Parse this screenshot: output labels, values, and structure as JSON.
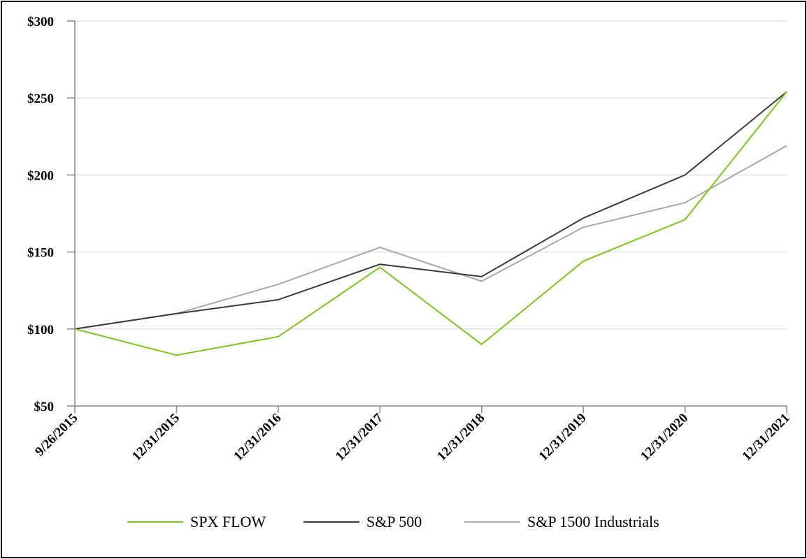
{
  "chart_data": {
    "type": "line",
    "title": "",
    "xlabel": "",
    "ylabel": "",
    "categories": [
      "9/26/2015",
      "12/31/2015",
      "12/31/2016",
      "12/31/2017",
      "12/31/2018",
      "12/31/2019",
      "12/31/2020",
      "12/31/2021"
    ],
    "ylim": [
      50,
      300
    ],
    "yticks": [
      50,
      100,
      150,
      200,
      250,
      300
    ],
    "ytick_labels": [
      "$50",
      "$100",
      "$150",
      "$200",
      "$250",
      "$300"
    ],
    "grid": "horizontal",
    "legend_position": "bottom",
    "series": [
      {
        "name": "SPX FLOW",
        "color": "#7dc51e",
        "values": [
          100,
          83,
          95,
          140,
          90,
          144,
          171,
          254
        ]
      },
      {
        "name": "S&P 500",
        "color": "#3a3a3a",
        "values": [
          100,
          110,
          119,
          142,
          134,
          172,
          200,
          254
        ]
      },
      {
        "name": "S&P 1500 Industrials",
        "color": "#a8a8a8",
        "values": [
          100,
          110,
          129,
          153,
          131,
          166,
          182,
          219
        ]
      }
    ]
  }
}
